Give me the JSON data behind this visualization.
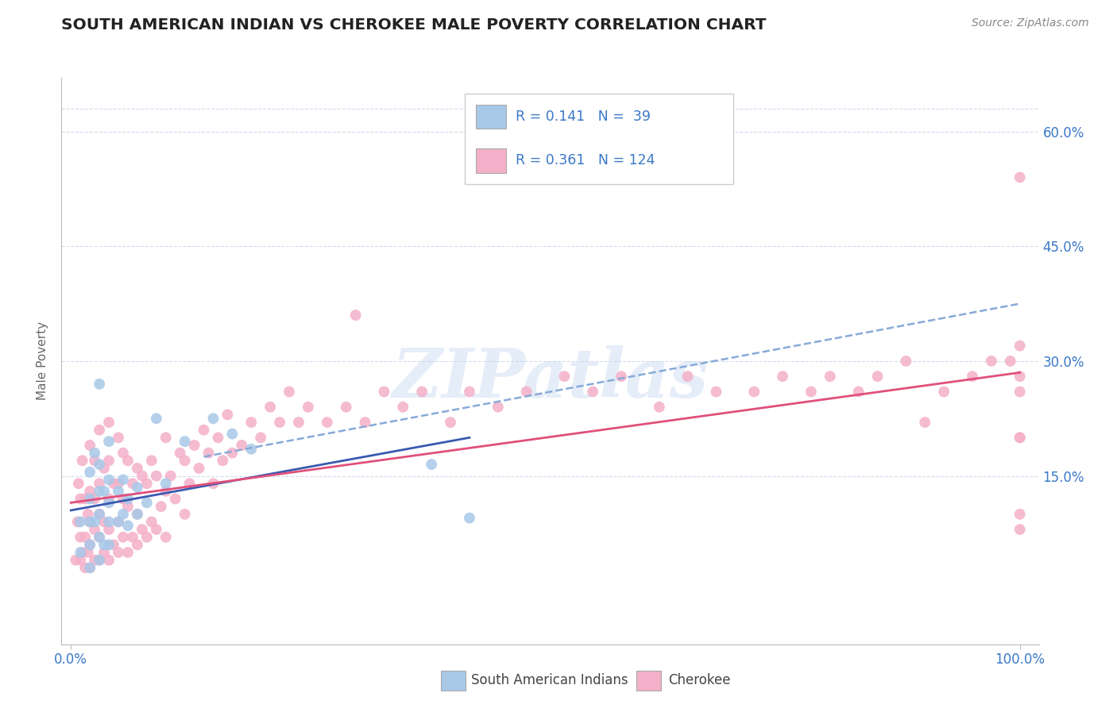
{
  "title": "SOUTH AMERICAN INDIAN VS CHEROKEE MALE POVERTY CORRELATION CHART",
  "source": "Source: ZipAtlas.com",
  "ylabel": "Male Poverty",
  "legend_R1": "0.141",
  "legend_N1": "39",
  "legend_R2": "0.361",
  "legend_N2": "124",
  "blue_color": "#a8c8e8",
  "pink_color": "#f4b0c8",
  "blue_line_color": "#3a5ab0",
  "pink_line_color": "#e0507a",
  "dashed_color": "#88aad8",
  "text_color": "#3a78c8",
  "dark_text": "#222222",
  "watermark": "ZIPatlas",
  "background": "#ffffff",
  "grid_color": "#d0dcee",
  "xlim": [
    -0.01,
    1.02
  ],
  "ylim": [
    -0.07,
    0.67
  ],
  "x_ticks": [
    0.0,
    1.0
  ],
  "x_tick_labels": [
    "0.0%",
    "100.0%"
  ],
  "y_ticks": [
    0.15,
    0.3,
    0.45,
    0.6
  ],
  "y_tick_labels": [
    "15.0%",
    "30.0%",
    "45.0%",
    "60.0%"
  ],
  "blue_x": [
    0.01,
    0.01,
    0.02,
    0.02,
    0.02,
    0.02,
    0.02,
    0.025,
    0.025,
    0.03,
    0.03,
    0.03,
    0.03,
    0.03,
    0.03,
    0.035,
    0.035,
    0.04,
    0.04,
    0.04,
    0.04,
    0.04,
    0.05,
    0.05,
    0.055,
    0.055,
    0.06,
    0.06,
    0.07,
    0.07,
    0.08,
    0.09,
    0.1,
    0.12,
    0.15,
    0.17,
    0.19,
    0.38,
    0.42
  ],
  "blue_y": [
    0.05,
    0.09,
    0.03,
    0.06,
    0.09,
    0.12,
    0.155,
    0.09,
    0.18,
    0.04,
    0.07,
    0.1,
    0.13,
    0.165,
    0.27,
    0.06,
    0.13,
    0.06,
    0.09,
    0.115,
    0.145,
    0.195,
    0.09,
    0.13,
    0.1,
    0.145,
    0.085,
    0.12,
    0.1,
    0.135,
    0.115,
    0.225,
    0.14,
    0.195,
    0.225,
    0.205,
    0.185,
    0.165,
    0.095
  ],
  "pink_x": [
    0.005,
    0.007,
    0.008,
    0.01,
    0.01,
    0.01,
    0.012,
    0.012,
    0.015,
    0.015,
    0.015,
    0.018,
    0.018,
    0.02,
    0.02,
    0.02,
    0.02,
    0.02,
    0.025,
    0.025,
    0.025,
    0.025,
    0.03,
    0.03,
    0.03,
    0.03,
    0.03,
    0.035,
    0.035,
    0.035,
    0.04,
    0.04,
    0.04,
    0.04,
    0.04,
    0.045,
    0.045,
    0.05,
    0.05,
    0.05,
    0.05,
    0.055,
    0.055,
    0.055,
    0.06,
    0.06,
    0.06,
    0.065,
    0.065,
    0.07,
    0.07,
    0.07,
    0.075,
    0.075,
    0.08,
    0.08,
    0.085,
    0.085,
    0.09,
    0.09,
    0.095,
    0.1,
    0.1,
    0.1,
    0.105,
    0.11,
    0.115,
    0.12,
    0.12,
    0.125,
    0.13,
    0.135,
    0.14,
    0.145,
    0.15,
    0.155,
    0.16,
    0.165,
    0.17,
    0.18,
    0.19,
    0.2,
    0.21,
    0.22,
    0.23,
    0.24,
    0.25,
    0.27,
    0.29,
    0.31,
    0.33,
    0.35,
    0.37,
    0.4,
    0.42,
    0.45,
    0.48,
    0.52,
    0.55,
    0.58,
    0.62,
    0.65,
    0.68,
    0.72,
    0.75,
    0.78,
    0.8,
    0.83,
    0.85,
    0.88,
    0.9,
    0.92,
    0.95,
    0.97,
    0.99,
    1.0,
    1.0,
    1.0,
    1.0,
    1.0,
    1.0,
    1.0,
    1.0,
    0.3
  ],
  "pink_y": [
    0.04,
    0.09,
    0.14,
    0.04,
    0.07,
    0.12,
    0.05,
    0.17,
    0.03,
    0.07,
    0.12,
    0.05,
    0.1,
    0.03,
    0.06,
    0.09,
    0.13,
    0.19,
    0.04,
    0.08,
    0.12,
    0.17,
    0.04,
    0.07,
    0.1,
    0.14,
    0.21,
    0.05,
    0.09,
    0.16,
    0.04,
    0.08,
    0.12,
    0.17,
    0.22,
    0.06,
    0.14,
    0.05,
    0.09,
    0.14,
    0.2,
    0.07,
    0.12,
    0.18,
    0.05,
    0.11,
    0.17,
    0.07,
    0.14,
    0.06,
    0.1,
    0.16,
    0.08,
    0.15,
    0.07,
    0.14,
    0.09,
    0.17,
    0.08,
    0.15,
    0.11,
    0.07,
    0.13,
    0.2,
    0.15,
    0.12,
    0.18,
    0.1,
    0.17,
    0.14,
    0.19,
    0.16,
    0.21,
    0.18,
    0.14,
    0.2,
    0.17,
    0.23,
    0.18,
    0.19,
    0.22,
    0.2,
    0.24,
    0.22,
    0.26,
    0.22,
    0.24,
    0.22,
    0.24,
    0.22,
    0.26,
    0.24,
    0.26,
    0.22,
    0.26,
    0.24,
    0.26,
    0.28,
    0.26,
    0.28,
    0.24,
    0.28,
    0.26,
    0.26,
    0.28,
    0.26,
    0.28,
    0.26,
    0.28,
    0.3,
    0.22,
    0.26,
    0.28,
    0.3,
    0.3,
    0.1,
    0.2,
    0.26,
    0.08,
    0.32,
    0.28,
    0.54,
    0.2,
    0.36
  ],
  "blue_trend": [
    0.0,
    0.42,
    0.105,
    0.2
  ],
  "pink_trend": [
    0.0,
    1.0,
    0.115,
    0.285
  ],
  "dashed_trend": [
    0.14,
    1.0,
    0.175,
    0.375
  ]
}
